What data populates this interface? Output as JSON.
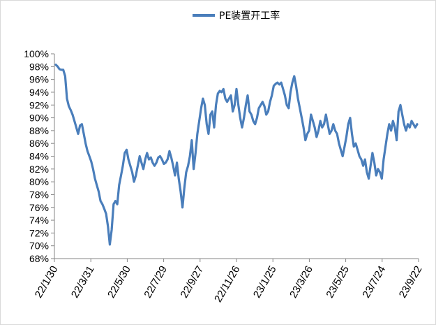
{
  "chart_data": {
    "type": "line",
    "title": "",
    "xlabel": "",
    "ylabel": "",
    "ylim": [
      68,
      100
    ],
    "yticks": [
      "100%",
      "98%",
      "96%",
      "94%",
      "92%",
      "90%",
      "88%",
      "86%",
      "84%",
      "82%",
      "80%",
      "78%",
      "76%",
      "74%",
      "72%",
      "70%",
      "68%"
    ],
    "xticks": [
      "22/1/30",
      "22/3/31",
      "22/5/30",
      "22/7/29",
      "22/9/27",
      "22/11/26",
      "23/1/25",
      "23/3/26",
      "23/5/25",
      "23/7/24",
      "23/9/22"
    ],
    "legend": {
      "position": "top-center",
      "entries": [
        "PE装置开工率"
      ]
    },
    "grid": false,
    "series": [
      {
        "name": "PE装置开工率",
        "color": "#4a7ebb",
        "x_start": "22/1/30",
        "x_end": "23/9/22",
        "values": [
          98.3,
          98.0,
          97.6,
          97.5,
          97.5,
          96.5,
          93.0,
          91.8,
          91.2,
          90.5,
          89.5,
          88.5,
          87.5,
          88.8,
          89.0,
          87.5,
          86.0,
          84.8,
          84.0,
          83.2,
          82.0,
          80.5,
          79.5,
          78.5,
          77.0,
          76.5,
          75.8,
          75.0,
          73.0,
          70.2,
          72.5,
          76.5,
          77.0,
          76.5,
          79.5,
          81.0,
          82.5,
          84.5,
          85.0,
          83.5,
          82.5,
          81.5,
          80.0,
          81.0,
          82.5,
          84.0,
          83.0,
          82.0,
          83.5,
          84.5,
          83.5,
          83.8,
          83.0,
          82.5,
          83.0,
          83.8,
          84.0,
          83.5,
          82.8,
          83.0,
          83.5,
          84.8,
          83.8,
          82.5,
          81.0,
          83.0,
          80.5,
          78.5,
          76.0,
          79.0,
          81.5,
          82.5,
          84.0,
          86.5,
          82.0,
          84.5,
          87.5,
          89.5,
          91.5,
          93.0,
          92.0,
          89.0,
          87.5,
          90.5,
          91.0,
          88.5,
          92.0,
          93.8,
          94.2,
          94.0,
          94.5,
          93.0,
          92.5,
          93.0,
          93.5,
          91.0,
          92.0,
          94.5,
          92.0,
          90.0,
          88.5,
          90.0,
          92.0,
          93.5,
          91.0,
          90.5,
          89.5,
          89.0,
          90.0,
          91.5,
          92.0,
          92.5,
          91.8,
          90.5,
          91.0,
          92.5,
          93.5,
          95.0,
          95.3,
          95.5,
          95.2,
          95.5,
          94.5,
          93.5,
          92.0,
          91.5,
          94.0,
          95.5,
          96.5,
          95.0,
          93.0,
          91.5,
          90.0,
          88.5,
          86.5,
          87.5,
          88.0,
          90.5,
          89.5,
          88.5,
          87.0,
          88.0,
          89.5,
          88.5,
          89.0,
          90.5,
          89.0,
          87.5,
          88.0,
          89.0,
          88.0,
          87.5,
          86.0,
          85.0,
          84.0,
          85.5,
          87.0,
          89.0,
          90.0,
          87.5,
          85.5,
          86.0,
          85.0,
          84.0,
          83.5,
          82.5,
          83.5,
          81.5,
          80.5,
          82.5,
          84.5,
          83.0,
          81.0,
          82.0,
          81.5,
          80.5,
          83.5,
          85.5,
          87.5,
          89.0,
          88.0,
          89.5,
          88.5,
          86.5,
          91.0,
          92.0,
          90.5,
          89.0,
          88.0,
          89.0,
          88.5,
          89.5,
          89.0,
          88.5,
          89.0
        ]
      }
    ]
  }
}
